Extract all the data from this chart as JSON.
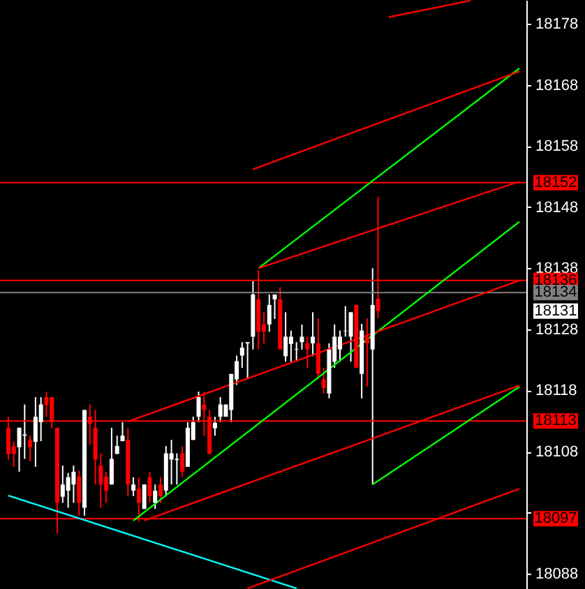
{
  "chart_data": {
    "type": "candlestick",
    "categories": [
      null,
      null,
      null,
      null,
      null,
      null,
      null,
      null,
      null,
      null,
      null,
      null,
      null,
      null,
      null,
      null,
      null,
      null,
      null,
      null,
      null,
      null,
      null,
      null,
      null,
      null,
      null,
      null,
      null,
      null,
      null,
      null,
      null,
      null,
      null,
      null,
      null,
      null,
      null,
      null,
      null,
      null,
      null,
      null,
      null,
      null,
      null,
      null,
      null,
      null,
      null,
      null,
      null,
      null,
      null,
      null,
      null,
      null,
      null,
      null,
      null,
      null,
      null,
      null,
      null,
      null,
      null,
      null,
      null,
      null,
      null,
      null,
      null,
      null,
      null,
      null,
      null,
      null,
      null,
      null,
      null,
      null,
      null,
      null,
      null,
      null,
      null,
      null,
      null,
      null,
      null,
      null,
      null,
      null,
      null
    ],
    "ohlc": [
      [
        18111.9,
        18113.7,
        18106.7,
        18107.6
      ],
      [
        18108.9,
        18109.7,
        18105.5,
        18107.6
      ],
      [
        18108.7,
        18111.9,
        18104.7,
        18111.9
      ],
      [
        18110.6,
        18115.7,
        18106.8,
        18110.8
      ],
      [
        18109.9,
        18110.6,
        18106.4,
        18108.7
      ],
      [
        18109.6,
        18116.9,
        18105.5,
        18113.7
      ],
      [
        18112.8,
        18116.9,
        18109.7,
        18115.7
      ],
      [
        18116.9,
        18117.8,
        18113.7,
        18115.6
      ],
      [
        18116.9,
        18116.9,
        18111.8,
        18112.8
      ],
      [
        18111.9,
        18111.9,
        18094.6,
        18099.6
      ],
      [
        18100.6,
        18105.7,
        18099.6,
        18102.6
      ],
      [
        18101.6,
        18104.5,
        18098.8,
        18103.8
      ],
      [
        18102.6,
        18105.7,
        18099.6,
        18104.7
      ],
      [
        18103.9,
        18104.9,
        18097.5,
        18099.6
      ],
      [
        18098.8,
        18114.8,
        18097.5,
        18114.8
      ],
      [
        18113.7,
        18115.7,
        18109.1,
        18112.5
      ],
      [
        18111.9,
        18114.8,
        18102.6,
        18106.7
      ],
      [
        18105.7,
        18107.7,
        18098.8,
        18102.6
      ],
      [
        18103.9,
        18104.7,
        18099.6,
        18101.6
      ],
      [
        18102.6,
        18111.9,
        18102.6,
        18106.8
      ],
      [
        18107.6,
        18110.6,
        18107.6,
        18108.9
      ],
      [
        18109.7,
        18112.8,
        18109.7,
        18110.6
      ],
      [
        18109.9,
        18111.9,
        18100.7,
        18102.6
      ],
      [
        18101.6,
        18103.8,
        18100.7,
        18102.6
      ],
      [
        18101.9,
        18103.8,
        18096.5,
        18099.6
      ],
      [
        18098.6,
        18102.6,
        18098.6,
        18102.6
      ],
      [
        18103.8,
        18104.7,
        18099.6,
        18100.7
      ],
      [
        18099.6,
        18102.6,
        18098.6,
        18101.6
      ],
      [
        18102.6,
        18103.8,
        18099.6,
        18100.7
      ],
      [
        18101.6,
        18108.9,
        18100.7,
        18107.7
      ],
      [
        18106.7,
        18109.9,
        18102.6,
        18107.7
      ],
      [
        18106.6,
        18107.7,
        18102.6,
        18106.8
      ],
      [
        18107.7,
        18108.9,
        18103.8,
        18104.7
      ],
      [
        18105.5,
        18112.8,
        18105.5,
        18111.9
      ],
      [
        18109.9,
        18113.7,
        18109.9,
        18112.8
      ],
      [
        18113.7,
        18117.8,
        18112.8,
        18116.9
      ],
      [
        18115.7,
        18117.8,
        18110.6,
        18114.8
      ],
      [
        18113.7,
        18114.8,
        18107.6,
        18107.6
      ],
      [
        18111.8,
        18113.7,
        18110.6,
        18112.7
      ],
      [
        18113.7,
        18116.9,
        18112.8,
        18115.7
      ],
      [
        18113.7,
        18115.7,
        18113.7,
        18115.7
      ],
      [
        18114.8,
        18120.7,
        18112.8,
        18120.7
      ],
      [
        18119.8,
        18123.7,
        18118.9,
        18122.8
      ],
      [
        18123.7,
        18125.9,
        18121.7,
        18125.0
      ],
      [
        18125.7,
        18125.9,
        18119.8,
        18125.9
      ],
      [
        18126.8,
        18135.9,
        18124.7,
        18133.7
      ],
      [
        18132.9,
        18137.7,
        18124.7,
        18127.6
      ],
      [
        18128.8,
        18130.8,
        18125.7,
        18127.6
      ],
      [
        18128.8,
        18133.7,
        18127.6,
        18132.0
      ],
      [
        18132.9,
        18133.7,
        18129.7,
        18133.7
      ],
      [
        18132.9,
        18134.9,
        18124.7,
        18124.7
      ],
      [
        18123.6,
        18130.8,
        18122.7,
        18126.8
      ],
      [
        18125.6,
        18127.8,
        18122.7,
        18126.8
      ],
      [
        18124.7,
        18125.9,
        18122.7,
        18124.8
      ],
      [
        18125.9,
        18128.8,
        18124.7,
        18126.8
      ],
      [
        18125.7,
        18126.8,
        18121.7,
        18124.7
      ],
      [
        18125.7,
        18130.8,
        18123.6,
        18126.8
      ],
      [
        18125.7,
        18129.8,
        18119.8,
        18120.7
      ],
      [
        18119.8,
        18121.7,
        18117.5,
        18118.4
      ],
      [
        18117.5,
        18125.7,
        18116.7,
        18124.7
      ],
      [
        18122.7,
        18128.8,
        18121.7,
        18126.8
      ],
      [
        18124.7,
        18127.8,
        18122.7,
        18126.8
      ],
      [
        18127.7,
        18131.8,
        18126.8,
        18127.8
      ],
      [
        18126.8,
        18130.8,
        18122.7,
        18130.8
      ],
      [
        18132.0,
        18132.0,
        18121.7,
        18121.7
      ],
      [
        18120.7,
        18128.9,
        18116.7,
        18127.8
      ],
      [
        18126.8,
        18129.8,
        18118.6,
        18125.7
      ],
      [
        18124.7,
        18138.0,
        18102.6,
        18132.0
      ],
      [
        18133.0,
        18149.7,
        18129.8,
        18131.0
      ],
      null,
      null,
      null,
      null,
      null,
      null,
      null,
      null,
      null,
      null,
      null,
      null,
      null,
      null,
      null,
      null,
      null,
      null,
      null,
      null,
      null,
      null,
      null,
      null,
      null,
      null
    ],
    "colors": [
      "#ff0000",
      "#ff0000",
      "#ffffff",
      "#ffffff",
      "#ff0000",
      "#ffffff",
      "#ffffff",
      "#ff0000",
      "#ff0000",
      "#ff0000",
      "#ffffff",
      "#ffffff",
      "#ffffff",
      "#ff0000",
      "#ffffff",
      "#ff0000",
      "#ff0000",
      "#ff0000",
      "#ff0000",
      "#ffffff",
      "#ffffff",
      "#ffffff",
      "#ff0000",
      "#ffffff",
      "#ff0000",
      "#ffffff",
      "#ff0000",
      "#ffffff",
      "#ff0000",
      "#ffffff",
      "#ffffff",
      "#ffffff",
      "#ff0000",
      "#ffffff",
      "#ffffff",
      "#ffffff",
      "#ff0000",
      "#ff0000",
      "#ffffff",
      "#ffffff",
      "#ffffff",
      "#ffffff",
      "#ffffff",
      "#ffffff",
      "#ffffff",
      "#ffffff",
      "#ff0000",
      "#ff0000",
      "#ffffff",
      "#ffffff",
      "#ff0000",
      "#ffffff",
      "#ffffff",
      "#ffffff",
      "#ffffff",
      "#ff0000",
      "#ffffff",
      "#ff0000",
      "#ff0000",
      "#ffffff",
      "#ffffff",
      "#ffffff",
      "#ffffff",
      "#ffffff",
      "#ff0000",
      "#ffffff",
      "#ff0000",
      "#ffffff",
      "#ff0000",
      null,
      null,
      null,
      null,
      null,
      null,
      null,
      null,
      null,
      null,
      null,
      null,
      null,
      null,
      null,
      null,
      null,
      null,
      null,
      null,
      null,
      null,
      null,
      null,
      null,
      null
    ],
    "series": [
      {
        "type": "line",
        "color": "#00ffff",
        "values": [
          18100.8,
          null,
          null,
          null,
          null,
          null,
          null,
          null,
          null,
          null,
          null,
          null,
          null,
          null,
          null,
          null,
          null,
          null,
          null,
          null,
          null,
          null,
          null,
          null,
          null,
          null,
          null,
          null,
          null,
          null,
          null,
          null,
          null,
          null,
          null,
          null,
          null,
          null,
          null,
          null,
          null,
          null,
          null,
          null,
          null,
          null,
          null,
          null,
          null,
          null,
          null,
          null,
          null,
          18085.6,
          null,
          null,
          null,
          null,
          null,
          null,
          null,
          null,
          null,
          null,
          null,
          null,
          null,
          null,
          null,
          null,
          null,
          null,
          null,
          null,
          null,
          null,
          null,
          null,
          null,
          null,
          null,
          null,
          null,
          null,
          null,
          null,
          null,
          null,
          null,
          null,
          null,
          null,
          null,
          null,
          null
        ]
      },
      {
        "type": "line",
        "color": "#00ff00",
        "values": [
          null,
          null,
          null,
          null,
          null,
          null,
          null,
          null,
          null,
          null,
          null,
          null,
          null,
          null,
          null,
          null,
          null,
          null,
          null,
          null,
          null,
          null,
          null,
          null,
          null,
          null,
          null,
          null,
          null,
          null,
          null,
          null,
          null,
          null,
          null,
          null,
          null,
          null,
          null,
          null,
          null,
          null,
          null,
          null,
          null,
          null,
          18138.0,
          null,
          null,
          null,
          null,
          null,
          null,
          null,
          null,
          null,
          null,
          null,
          null,
          null,
          null,
          null,
          null,
          null,
          null,
          null,
          null,
          null,
          null,
          null,
          null,
          null,
          null,
          null,
          null,
          null,
          null,
          null,
          null,
          null,
          null,
          null,
          null,
          null,
          null,
          null,
          null,
          null,
          null,
          null,
          null,
          null,
          null,
          null,
          18170.7
        ]
      },
      {
        "type": "line",
        "color": "#00ff00",
        "values": [
          null,
          null,
          null,
          null,
          null,
          null,
          null,
          null,
          null,
          null,
          null,
          null,
          null,
          null,
          null,
          null,
          null,
          null,
          null,
          null,
          null,
          null,
          null,
          18096.7,
          null,
          null,
          null,
          null,
          null,
          null,
          null,
          null,
          null,
          null,
          null,
          null,
          null,
          null,
          null,
          null,
          null,
          null,
          null,
          null,
          null,
          null,
          null,
          null,
          null,
          null,
          null,
          null,
          null,
          null,
          null,
          null,
          null,
          null,
          null,
          null,
          null,
          null,
          null,
          null,
          null,
          null,
          null,
          null,
          null,
          null,
          null,
          null,
          null,
          null,
          null,
          null,
          null,
          null,
          null,
          null,
          null,
          null,
          null,
          null,
          null,
          null,
          null,
          null,
          null,
          null,
          null,
          null,
          null,
          null,
          18145.6
        ]
      },
      {
        "type": "line",
        "color": "#00ff00",
        "values": [
          null,
          null,
          null,
          null,
          null,
          null,
          null,
          null,
          null,
          null,
          null,
          null,
          null,
          null,
          null,
          null,
          null,
          null,
          null,
          null,
          null,
          null,
          null,
          null,
          null,
          null,
          null,
          null,
          null,
          null,
          null,
          null,
          null,
          null,
          null,
          null,
          null,
          null,
          null,
          null,
          null,
          null,
          null,
          null,
          null,
          null,
          null,
          null,
          null,
          null,
          null,
          null,
          null,
          null,
          null,
          null,
          null,
          null,
          null,
          null,
          null,
          null,
          null,
          null,
          null,
          null,
          null,
          18102.6,
          null,
          null,
          null,
          null,
          null,
          null,
          null,
          null,
          null,
          null,
          null,
          null,
          null,
          null,
          null,
          null,
          null,
          null,
          null,
          null,
          null,
          null,
          null,
          null,
          null,
          null,
          18118.6
        ]
      },
      {
        "type": "line",
        "color": "#ff0000",
        "values": [
          null,
          null,
          null,
          null,
          null,
          null,
          null,
          null,
          null,
          null,
          null,
          null,
          null,
          null,
          null,
          null,
          null,
          null,
          null,
          null,
          null,
          null,
          null,
          null,
          null,
          null,
          null,
          null,
          null,
          null,
          null,
          null,
          null,
          null,
          null,
          null,
          null,
          null,
          null,
          null,
          null,
          null,
          null,
          null,
          null,
          null,
          null,
          null,
          null,
          null,
          null,
          null,
          null,
          null,
          null,
          null,
          null,
          null,
          null,
          null,
          null,
          null,
          null,
          null,
          null,
          null,
          null,
          null,
          null,
          null,
          18179.1,
          null,
          null,
          null,
          null,
          null,
          null,
          null,
          null,
          null,
          null,
          null,
          null,
          null,
          null,
          18181.8,
          null,
          null,
          null,
          null,
          null,
          null,
          null,
          null,
          null
        ]
      },
      {
        "type": "line",
        "color": "#ff0000",
        "values": [
          null,
          null,
          null,
          null,
          null,
          null,
          null,
          null,
          null,
          null,
          null,
          null,
          null,
          null,
          null,
          null,
          null,
          null,
          null,
          null,
          null,
          null,
          null,
          null,
          null,
          null,
          null,
          null,
          null,
          null,
          null,
          null,
          null,
          null,
          null,
          null,
          null,
          null,
          null,
          null,
          null,
          null,
          null,
          null,
          null,
          18154.2,
          null,
          null,
          null,
          null,
          null,
          null,
          null,
          null,
          null,
          null,
          null,
          null,
          null,
          null,
          null,
          null,
          null,
          null,
          null,
          null,
          null,
          null,
          null,
          null,
          null,
          null,
          null,
          null,
          null,
          null,
          null,
          null,
          null,
          null,
          null,
          null,
          null,
          null,
          null,
          null,
          null,
          null,
          null,
          null,
          null,
          null,
          null,
          null,
          18170.2
        ]
      },
      {
        "type": "line",
        "color": "#ff0000",
        "values": [
          null,
          null,
          null,
          null,
          null,
          null,
          null,
          null,
          null,
          null,
          null,
          null,
          null,
          null,
          null,
          null,
          null,
          null,
          null,
          null,
          null,
          null,
          null,
          null,
          null,
          null,
          null,
          null,
          null,
          null,
          null,
          null,
          null,
          null,
          null,
          null,
          null,
          null,
          null,
          null,
          null,
          null,
          null,
          null,
          null,
          null,
          18138.0,
          null,
          null,
          null,
          null,
          null,
          null,
          null,
          null,
          null,
          null,
          null,
          null,
          null,
          null,
          null,
          null,
          null,
          null,
          null,
          null,
          null,
          null,
          null,
          null,
          null,
          null,
          null,
          null,
          null,
          null,
          null,
          null,
          null,
          null,
          null,
          null,
          null,
          null,
          null,
          null,
          null,
          null,
          null,
          null,
          null,
          null,
          null,
          18152.2
        ]
      },
      {
        "type": "line",
        "color": "#ff0000",
        "values": [
          null,
          null,
          null,
          null,
          null,
          null,
          null,
          null,
          null,
          null,
          null,
          null,
          null,
          null,
          null,
          null,
          null,
          null,
          null,
          null,
          null,
          null,
          18112.9,
          null,
          null,
          null,
          null,
          null,
          null,
          null,
          null,
          null,
          null,
          null,
          null,
          null,
          null,
          null,
          null,
          null,
          null,
          null,
          null,
          null,
          null,
          null,
          null,
          null,
          null,
          null,
          null,
          null,
          null,
          null,
          null,
          null,
          null,
          null,
          null,
          null,
          null,
          null,
          null,
          null,
          null,
          null,
          null,
          null,
          null,
          null,
          null,
          null,
          null,
          null,
          null,
          null,
          null,
          null,
          null,
          null,
          null,
          null,
          null,
          null,
          null,
          null,
          null,
          null,
          null,
          null,
          null,
          null,
          null,
          null,
          18136.0
        ]
      },
      {
        "type": "line",
        "color": "#ff0000",
        "values": [
          null,
          null,
          null,
          null,
          null,
          null,
          null,
          null,
          null,
          null,
          null,
          null,
          null,
          null,
          null,
          null,
          null,
          null,
          null,
          null,
          null,
          null,
          null,
          null,
          null,
          18096.7,
          null,
          null,
          null,
          null,
          null,
          null,
          null,
          null,
          null,
          null,
          null,
          null,
          null,
          null,
          null,
          null,
          null,
          null,
          null,
          null,
          null,
          null,
          null,
          null,
          null,
          null,
          null,
          null,
          null,
          null,
          null,
          null,
          null,
          null,
          null,
          null,
          null,
          null,
          null,
          null,
          null,
          null,
          null,
          null,
          null,
          null,
          null,
          null,
          null,
          null,
          null,
          null,
          null,
          null,
          null,
          null,
          null,
          null,
          null,
          null,
          null,
          null,
          null,
          null,
          null,
          null,
          null,
          null,
          18118.8
        ]
      },
      {
        "type": "line",
        "color": "#ff0000",
        "values": [
          null,
          null,
          null,
          null,
          null,
          null,
          null,
          null,
          null,
          null,
          null,
          null,
          null,
          null,
          null,
          null,
          null,
          null,
          null,
          null,
          null,
          null,
          null,
          null,
          null,
          null,
          null,
          null,
          null,
          null,
          null,
          null,
          null,
          null,
          null,
          null,
          null,
          null,
          null,
          null,
          null,
          null,
          null,
          null,
          18085.6,
          null,
          null,
          null,
          null,
          null,
          null,
          null,
          null,
          null,
          null,
          null,
          null,
          null,
          null,
          null,
          null,
          null,
          null,
          null,
          null,
          null,
          null,
          null,
          null,
          null,
          null,
          null,
          null,
          null,
          null,
          null,
          null,
          null,
          null,
          null,
          null,
          null,
          null,
          null,
          null,
          null,
          null,
          null,
          null,
          null,
          null,
          null,
          null,
          null,
          18101.9
        ]
      }
    ],
    "ref_lines": [
      {
        "axis": "y",
        "value": 18152,
        "label": "18152",
        "color": "#ff0000"
      },
      {
        "axis": "y",
        "value": 18136,
        "label": "18136",
        "color": "#ff0000"
      },
      {
        "axis": "y",
        "value": 18134,
        "label": "18134",
        "color": "#808080"
      },
      {
        "axis": "y",
        "value": 18113,
        "label": "18113",
        "color": "#ff0000"
      },
      {
        "axis": "y",
        "value": 18097,
        "label": "18097",
        "color": "#ff0000"
      }
    ],
    "annotations": [
      "18131"
    ],
    "ylim": [
      18085.5,
      18181.9
    ],
    "yticks": [
      18088,
      {
        "value": 18098,
        "label": null
      },
      18108,
      18118,
      18128,
      18138,
      18148,
      18158,
      18168,
      18178
    ],
    "tick_labels": "y"
  }
}
